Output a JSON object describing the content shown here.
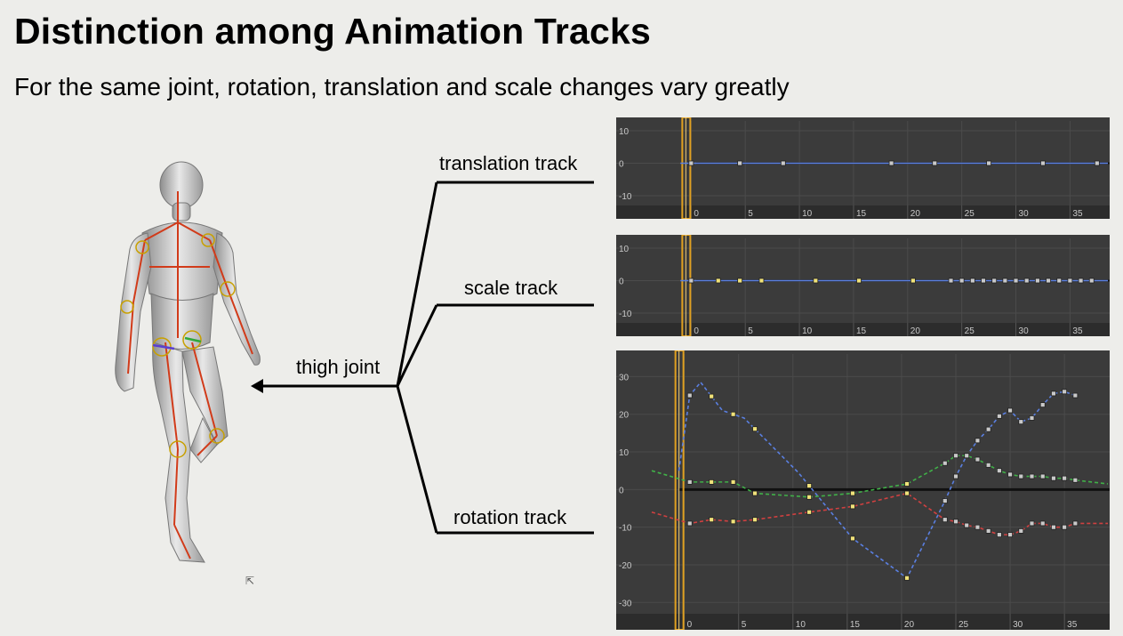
{
  "slide": {
    "title": "Distinction among Animation Tracks",
    "subtitle": "For the same joint, rotation, translation and scale changes vary greatly",
    "joint_label": "thigh joint",
    "tracks": [
      "translation track",
      "scale track",
      "rotation track"
    ],
    "figure_icon": "rigged-character-icon"
  },
  "chart_data": [
    {
      "type": "line",
      "name": "translation track",
      "x_ticks": [
        0,
        5,
        10,
        15,
        20,
        25,
        30,
        35
      ],
      "y_ticks": [
        10,
        0,
        -10
      ],
      "xlim": [
        -2,
        38.5
      ],
      "ylim": [
        -13,
        13
      ],
      "series": [
        {
          "color": "#5a7fe0",
          "dashed": false,
          "x": [
            -1,
            0,
            4.5,
            8.5,
            13.5,
            18.5,
            23.5,
            28.5,
            32.5,
            36,
            38.5
          ],
          "y": [
            0,
            0,
            0,
            0,
            0,
            0,
            0,
            0,
            0,
            0,
            0
          ],
          "keys": [
            0,
            4.5,
            8.5,
            18.5,
            22.5,
            27.5,
            32.5,
            37.5
          ]
        }
      ]
    },
    {
      "type": "line",
      "name": "scale track",
      "x_ticks": [
        0,
        5,
        10,
        15,
        20,
        25,
        30,
        35
      ],
      "y_ticks": [
        10,
        0,
        -10
      ],
      "xlim": [
        -2,
        38.5
      ],
      "ylim": [
        -13,
        13
      ],
      "series": [
        {
          "color": "#5a7fe0",
          "dashed": false,
          "x": [
            -1,
            0,
            38.5
          ],
          "y": [
            0,
            0,
            0
          ],
          "keys": [
            0,
            2.5,
            4.5,
            6.5,
            11.5,
            15.5,
            20.5,
            24,
            25,
            26,
            27,
            28,
            29,
            30,
            31,
            32,
            33,
            34,
            35,
            36,
            37
          ],
          "highlight_keys": [
            2.5,
            4.5,
            6.5,
            11.5,
            15.5,
            20.5
          ]
        }
      ]
    },
    {
      "type": "line",
      "name": "rotation track",
      "x_ticks": [
        0,
        5,
        10,
        15,
        20,
        25,
        30,
        35
      ],
      "y_ticks": [
        30,
        20,
        10,
        0,
        -10,
        -20,
        -30
      ],
      "xlim": [
        -3,
        39
      ],
      "ylim": [
        -33,
        36
      ],
      "series": [
        {
          "color": "#5a7fe0",
          "dashed": true,
          "x": [
            -0.5,
            0.5,
            1.5,
            3.5,
            5.5,
            10.5,
            15.5,
            20.5,
            24,
            25,
            26,
            27,
            28,
            29,
            30,
            31,
            32,
            33,
            34,
            35,
            36
          ],
          "y": [
            5,
            25,
            28.5,
            21,
            19,
            4.5,
            -13,
            -23.5,
            -3,
            3.5,
            9,
            13,
            16,
            19.5,
            21,
            18,
            19,
            22.5,
            25.5,
            26,
            25
          ],
          "keys": [
            0.5,
            2.5,
            4.5,
            6.5,
            11.5,
            15.5,
            20.5,
            24,
            25,
            26,
            27,
            28,
            29,
            30,
            31,
            32,
            33,
            34,
            35,
            36
          ]
        },
        {
          "color": "#40b048",
          "dashed": true,
          "x": [
            -3,
            0.5,
            2.5,
            4.5,
            6.5,
            11.5,
            15.5,
            20.5,
            24,
            25,
            26,
            27,
            28,
            29,
            30,
            31,
            32,
            33,
            34,
            35,
            36,
            39
          ],
          "y": [
            5,
            2,
            2,
            2,
            -1,
            -2,
            -1,
            1.5,
            7,
            9,
            9,
            8,
            6.5,
            5,
            4,
            3.5,
            3.5,
            3.5,
            3,
            3,
            2.5,
            1.5
          ],
          "keys": [
            0.5,
            2.5,
            4.5,
            6.5,
            11.5,
            15.5,
            20.5,
            24,
            25,
            26,
            27,
            28,
            29,
            30,
            31,
            32,
            33,
            34,
            35,
            36
          ]
        },
        {
          "color": "#d04040",
          "dashed": true,
          "x": [
            -3,
            0.5,
            2.5,
            4.5,
            6.5,
            11.5,
            15.5,
            20.5,
            24,
            25,
            26,
            27,
            28,
            29,
            30,
            31,
            32,
            33,
            34,
            35,
            36,
            39
          ],
          "y": [
            -6,
            -9,
            -8,
            -8.5,
            -8,
            -6,
            -4.5,
            -1,
            -8,
            -8.5,
            -9.5,
            -10,
            -11,
            -12,
            -12,
            -11,
            -9,
            -9,
            -10,
            -10,
            -9,
            -9
          ],
          "keys": [
            0.5,
            2.5,
            4.5,
            6.5,
            11.5,
            15.5,
            20.5,
            24,
            25,
            26,
            27,
            28,
            29,
            30,
            31,
            32,
            33,
            34,
            35,
            36
          ]
        }
      ],
      "highlight_keys": [
        2.5,
        4.5,
        6.5,
        11.5,
        15.5,
        20.5
      ]
    }
  ]
}
